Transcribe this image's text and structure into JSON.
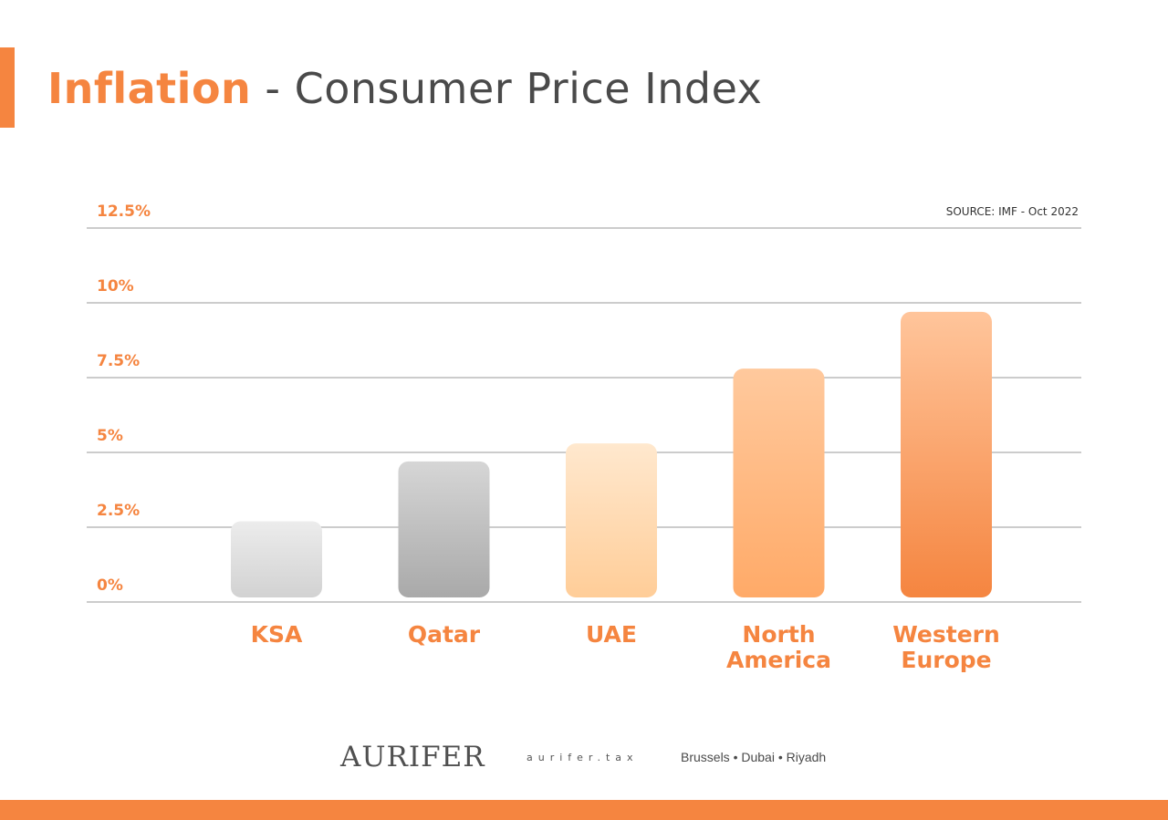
{
  "title": {
    "highlight": "Inflation",
    "rest": " - Consumer Price Index"
  },
  "source": "SOURCE: IMF - Oct 2022",
  "colors": {
    "accent": "#f58540",
    "text": "#4a4a4a",
    "grid": "#cccccc"
  },
  "chart_data": {
    "type": "bar",
    "title": "Inflation - Consumer Price Index",
    "xlabel": "",
    "ylabel": "",
    "ylim": [
      0,
      12.5
    ],
    "yticks": [
      "0%",
      "2.5%",
      "5%",
      "7.5%",
      "10%",
      "12.5%"
    ],
    "grid": true,
    "categories": [
      [
        "KSA"
      ],
      [
        "Qatar"
      ],
      [
        "UAE"
      ],
      [
        "North",
        "America"
      ],
      [
        "Western",
        "Europe"
      ]
    ],
    "values": [
      2.7,
      4.7,
      5.3,
      7.8,
      9.7
    ],
    "bar_gradients": [
      [
        "#ececec",
        "#d2d2d2"
      ],
      [
        "#d6d6d6",
        "#a9a9a9"
      ],
      [
        "#ffe8ce",
        "#ffcd98"
      ],
      [
        "#ffc99d",
        "#ffaa68"
      ],
      [
        "#ffc59b",
        "#f58540"
      ]
    ]
  },
  "footer": {
    "logo": "AURIFER",
    "site": "aurifer.tax",
    "cities": "Brussels • Dubai • Riyadh"
  }
}
